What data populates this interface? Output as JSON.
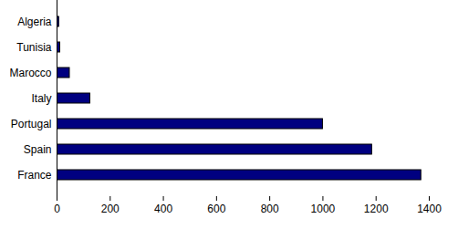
{
  "chart_data": {
    "type": "bar",
    "orientation": "horizontal",
    "categories": [
      "Algeria",
      "Tunisia",
      "Marocco",
      "Italy",
      "Portugal",
      "Spain",
      "France"
    ],
    "values": [
      8,
      12,
      48,
      125,
      1000,
      1185,
      1370
    ],
    "color": "#000080",
    "xlim": [
      0,
      1400
    ],
    "xticks": [
      0,
      200,
      400,
      600,
      800,
      1000,
      1200,
      1400
    ],
    "grid": false
  }
}
